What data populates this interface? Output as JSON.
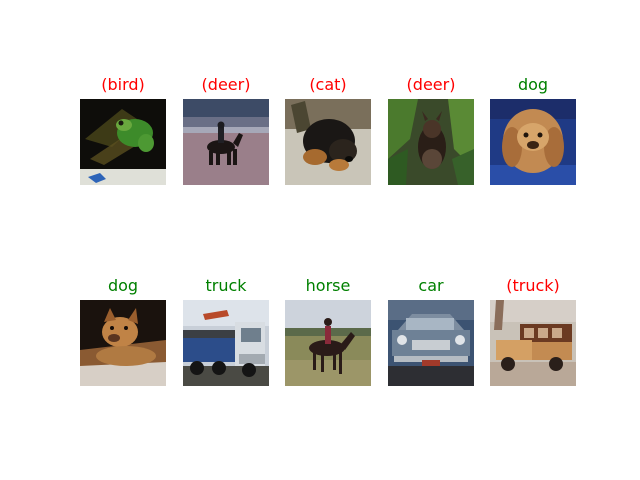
{
  "colors": {
    "correct": "#008000",
    "incorrect": "#ff0000"
  },
  "rows": [
    [
      {
        "label": "(bird)",
        "correct": false
      },
      {
        "label": "(deer)",
        "correct": false
      },
      {
        "label": "(cat)",
        "correct": false
      },
      {
        "label": "(deer)",
        "correct": false
      },
      {
        "label": "dog",
        "correct": true
      }
    ],
    [
      {
        "label": "dog",
        "correct": true
      },
      {
        "label": "truck",
        "correct": true
      },
      {
        "label": "horse",
        "correct": true
      },
      {
        "label": "car",
        "correct": true
      },
      {
        "label": "(truck)",
        "correct": false
      }
    ]
  ],
  "icons": [
    "frog-photo-icon",
    "rider-photo-icon",
    "dog-photo-icon",
    "dog-in-plants-photo-icon",
    "pekingese-photo-icon",
    "dog-lying-photo-icon",
    "truck-photo-icon",
    "horse-photo-icon",
    "car-photo-icon",
    "vintage-truck-photo-icon"
  ]
}
